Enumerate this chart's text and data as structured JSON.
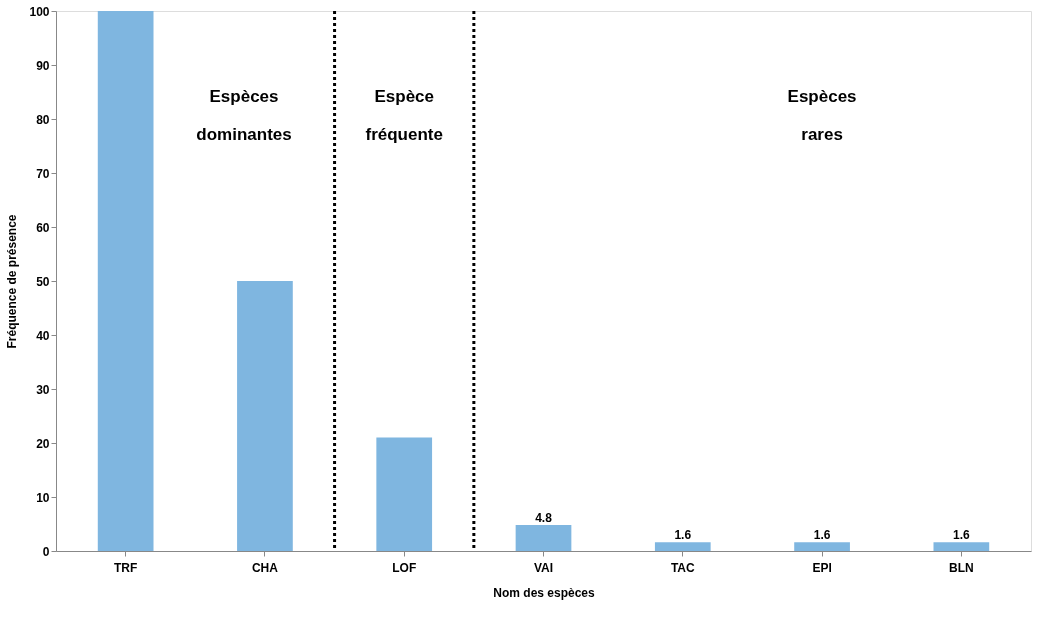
{
  "chart_data": {
    "type": "bar",
    "xlabel": "Nom des espèces",
    "ylabel": "Fréquence de présence",
    "categories": [
      "TRF",
      "CHA",
      "LOF",
      "VAI",
      "TAC",
      "EPI",
      "BLN"
    ],
    "values": [
      100,
      50,
      21,
      4.8,
      1.6,
      1.6,
      1.6
    ],
    "value_labels": [
      null,
      null,
      null,
      "4.8",
      "1.6",
      "1.6",
      "1.6"
    ],
    "color": "#7fb6e0",
    "ylim": [
      0,
      100
    ],
    "yticks": [
      0,
      10,
      20,
      30,
      40,
      50,
      60,
      70,
      80,
      90,
      100
    ],
    "grid": false,
    "annotations": [
      "Espèces\ndominantes",
      "Espèce\nfréquente",
      "Espèces\nrares"
    ]
  }
}
